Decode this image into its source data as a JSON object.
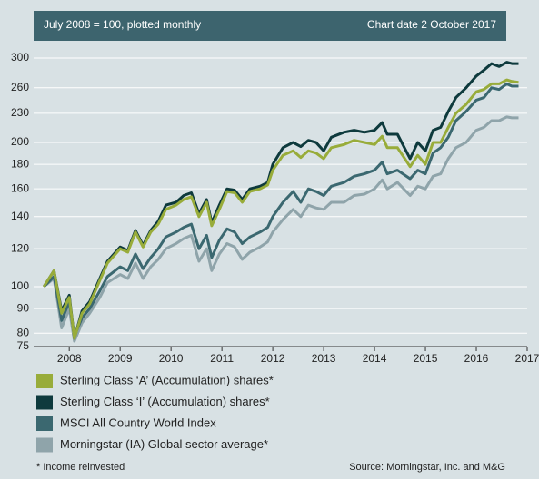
{
  "chart_data": {
    "type": "line",
    "subtitle": "July 2008 = 100, plotted monthly",
    "chart_date": "Chart date 2 October 2017",
    "footnote": "* Income reinvested",
    "source": "Source: Morningstar, Inc. and M&G",
    "yscale": "log",
    "grid": true,
    "legend": "bottom",
    "xlim": [
      2007.3,
      2017
    ],
    "ylim": [
      75,
      323
    ],
    "xticks": [
      2008,
      2009,
      2010,
      2011,
      2012,
      2013,
      2014,
      2015,
      2016,
      2017
    ],
    "yticks": [
      75,
      80,
      90,
      100,
      120,
      140,
      160,
      180,
      200,
      230,
      260,
      300
    ],
    "x": [
      2007.5,
      2007.7,
      2007.85,
      2008.0,
      2008.1,
      2008.25,
      2008.4,
      2008.6,
      2008.75,
      2009.0,
      2009.15,
      2009.3,
      2009.45,
      2009.6,
      2009.75,
      2009.9,
      2010.1,
      2010.25,
      2010.4,
      2010.55,
      2010.7,
      2010.8,
      2010.95,
      2011.1,
      2011.25,
      2011.4,
      2011.55,
      2011.75,
      2011.9,
      2012.0,
      2012.2,
      2012.4,
      2012.55,
      2012.7,
      2012.85,
      2013.0,
      2013.15,
      2013.4,
      2013.6,
      2013.8,
      2014.0,
      2014.15,
      2014.25,
      2014.45,
      2014.7,
      2014.85,
      2015.0,
      2015.15,
      2015.3,
      2015.45,
      2015.6,
      2015.8,
      2016.0,
      2016.15,
      2016.3,
      2016.45,
      2016.6,
      2016.7,
      2016.83
    ],
    "series": [
      {
        "name": "Morningstar (IA) Global sector average*",
        "color": "#8fa4aa",
        "values": [
          100,
          104,
          82,
          90,
          77,
          84,
          88,
          95,
          102,
          106,
          104,
          112,
          104,
          110,
          114,
          120,
          123,
          126,
          128,
          113,
          120,
          108,
          117,
          123,
          121,
          114,
          118,
          121,
          124,
          130,
          138,
          145,
          140,
          148,
          146,
          145,
          150,
          150,
          155,
          156,
          160,
          167,
          160,
          165,
          155,
          162,
          160,
          170,
          172,
          185,
          195,
          200,
          212,
          215,
          222,
          222,
          226,
          225,
          225
        ]
      },
      {
        "name": "MSCI All Country World Index",
        "color": "#3b6870",
        "values": [
          100,
          105,
          85,
          93,
          79,
          86,
          90,
          98,
          105,
          110,
          108,
          117,
          109,
          115,
          120,
          127,
          130,
          133,
          135,
          120,
          128,
          115,
          125,
          132,
          130,
          123,
          127,
          130,
          133,
          140,
          150,
          158,
          150,
          160,
          158,
          155,
          162,
          165,
          170,
          172,
          175,
          182,
          172,
          175,
          168,
          175,
          172,
          190,
          195,
          205,
          222,
          232,
          245,
          248,
          260,
          258,
          265,
          262,
          262
        ]
      },
      {
        "name": "Sterling Class ‘I’ (Accumulation) shares*",
        "color": "#0e3a3d",
        "values": [
          100,
          108,
          89,
          96,
          78,
          89,
          93,
          104,
          113,
          121,
          119,
          131,
          122,
          131,
          137,
          148,
          150,
          155,
          157,
          142,
          152,
          136,
          148,
          160,
          159,
          152,
          160,
          162,
          165,
          180,
          195,
          200,
          196,
          202,
          200,
          192,
          205,
          210,
          212,
          210,
          212,
          220,
          208,
          208,
          185,
          200,
          192,
          212,
          215,
          232,
          248,
          260,
          275,
          283,
          292,
          288,
          294,
          292,
          292
        ]
      },
      {
        "name": "Sterling Class ‘A’ (Accumulation) shares*",
        "color": "#98ac3a",
        "values": [
          100,
          108,
          88,
          95,
          78,
          88,
          92,
          103,
          112,
          120,
          118,
          130,
          121,
          130,
          135,
          145,
          148,
          152,
          154,
          140,
          150,
          134,
          145,
          158,
          157,
          150,
          158,
          160,
          163,
          175,
          188,
          192,
          186,
          192,
          190,
          185,
          195,
          198,
          202,
          200,
          198,
          206,
          195,
          195,
          178,
          188,
          180,
          200,
          200,
          215,
          230,
          240,
          255,
          258,
          265,
          265,
          270,
          268,
          267
        ]
      }
    ],
    "legend_order": [
      3,
      2,
      1,
      0
    ]
  }
}
